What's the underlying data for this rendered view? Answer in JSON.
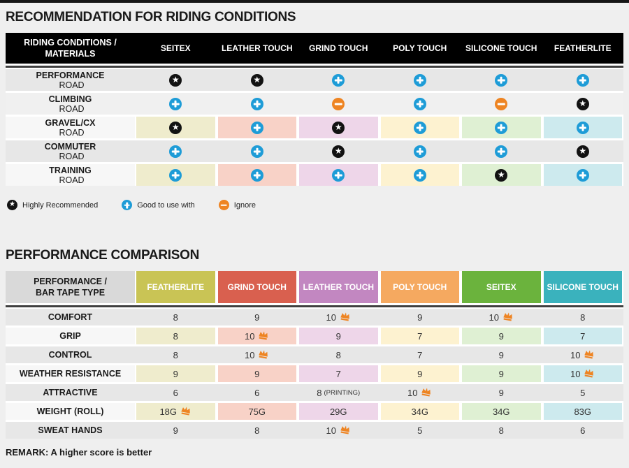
{
  "page_titles": {
    "riding": "RECOMMENDATION FOR RIDING CONDITIONS",
    "performance": "PERFORMANCE COMPARISON",
    "remark": "REMARK: A higher score is better"
  },
  "colors": {
    "blue": "#1e9cd7",
    "orange": "#ee8422",
    "icon_black": "#121212",
    "header_black": "#000000",
    "header_gray": "#d9d9d9",
    "sep_line": "#3f3f3f",
    "page_bg": "#efefef",
    "shades": {
      "dark": "#e7e7e7",
      "mid": "#f0f0f0",
      "light": "#f7f7f7"
    },
    "column_pales": [
      "#efeccd",
      "#f8d2c7",
      "#eed6e9",
      "#fdf2d0",
      "#dff0d3",
      "#cdeaee"
    ]
  },
  "chart_data": [
    {
      "type": "table",
      "title": "RECOMMENDATION FOR RIDING CONDITIONS",
      "row_header_line1": "RIDING CONDITIONS /",
      "row_header_line2": "MATERIALS",
      "columns": [
        "SEITEX",
        "LEATHER TOUCH",
        "GRIND TOUCH",
        "POLY TOUCH",
        "SILICONE TOUCH",
        "FEATHERLITE"
      ],
      "legend": [
        {
          "icon": "star",
          "label": "Highly Recommended"
        },
        {
          "icon": "plus",
          "label": "Good to use with"
        },
        {
          "icon": "minus",
          "label": "Ignore"
        }
      ],
      "rows": [
        {
          "label_bold": "PERFORMANCE",
          "label_rest": "ROAD",
          "shade": "dark",
          "colored": false,
          "icons": [
            "star",
            "star",
            "plus",
            "plus",
            "plus",
            "plus"
          ]
        },
        {
          "label_bold": "CLIMBING",
          "label_rest": "ROAD",
          "shade": "mid",
          "colored": false,
          "icons": [
            "plus",
            "plus",
            "minus",
            "plus",
            "minus",
            "star"
          ]
        },
        {
          "label_bold": "GRAVEL/CX",
          "label_rest": "ROAD",
          "shade": "light",
          "colored": true,
          "icons": [
            "star",
            "plus",
            "star",
            "plus",
            "plus",
            "plus"
          ]
        },
        {
          "label_bold": "COMMUTER",
          "label_rest": "ROAD",
          "shade": "dark",
          "colored": false,
          "icons": [
            "plus",
            "plus",
            "star",
            "plus",
            "plus",
            "star"
          ]
        },
        {
          "label_bold": "TRAINING",
          "label_rest": "ROAD",
          "shade": "light",
          "colored": true,
          "icons": [
            "plus",
            "plus",
            "plus",
            "plus",
            "star",
            "plus"
          ]
        }
      ]
    },
    {
      "type": "table",
      "title": "PERFORMANCE COMPARISON",
      "row_header_line1": "PERFORMANCE /",
      "row_header_line2": "BAR TAPE TYPE",
      "columns": [
        {
          "label": "FEATHERLITE",
          "color": "#c9c455",
          "pale": "#efeccd"
        },
        {
          "label": "GRIND TOUCH",
          "color": "#d9604f",
          "pale": "#f8d2c7"
        },
        {
          "label": "LEATHER TOUCH",
          "color": "#c287c1",
          "pale": "#eed6e9"
        },
        {
          "label": "POLY TOUCH",
          "color": "#f5a960",
          "pale": "#fdf2d0"
        },
        {
          "label": "SEITEX",
          "color": "#6bb33d",
          "pale": "#dff0d3"
        },
        {
          "label": "SILICONE TOUCH",
          "color": "#3ab2bd",
          "pale": "#cdeaee"
        }
      ],
      "note": "REMARK: A higher score is better",
      "rows": [
        {
          "label": "COMFORT",
          "shade": "dark",
          "colored": false,
          "cells": [
            {
              "v": "8"
            },
            {
              "v": "9"
            },
            {
              "v": "10",
              "crown": true
            },
            {
              "v": "9"
            },
            {
              "v": "10",
              "crown": true
            },
            {
              "v": "8"
            }
          ]
        },
        {
          "label": "GRIP",
          "shade": "light",
          "colored": true,
          "cells": [
            {
              "v": "8"
            },
            {
              "v": "10",
              "crown": true
            },
            {
              "v": "9"
            },
            {
              "v": "7"
            },
            {
              "v": "9"
            },
            {
              "v": "7"
            }
          ]
        },
        {
          "label": "CONTROL",
          "shade": "dark",
          "colored": false,
          "cells": [
            {
              "v": "8"
            },
            {
              "v": "10",
              "crown": true
            },
            {
              "v": "8"
            },
            {
              "v": "7"
            },
            {
              "v": "9"
            },
            {
              "v": "10",
              "crown": true
            }
          ]
        },
        {
          "label": "WEATHER RESISTANCE",
          "shade": "light",
          "colored": true,
          "cells": [
            {
              "v": "9"
            },
            {
              "v": "9"
            },
            {
              "v": "7"
            },
            {
              "v": "9"
            },
            {
              "v": "9"
            },
            {
              "v": "10",
              "crown": true
            }
          ]
        },
        {
          "label": "ATTRACTIVE",
          "shade": "dark",
          "colored": false,
          "cells": [
            {
              "v": "6"
            },
            {
              "v": "6"
            },
            {
              "v": "8",
              "note": "(PRINTING)"
            },
            {
              "v": "10",
              "crown": true
            },
            {
              "v": "9"
            },
            {
              "v": "5"
            }
          ]
        },
        {
          "label": "WEIGHT (ROLL)",
          "shade": "light",
          "colored": true,
          "cells": [
            {
              "v": "18G",
              "crown": true
            },
            {
              "v": "75G"
            },
            {
              "v": "29G"
            },
            {
              "v": "34G"
            },
            {
              "v": "34G"
            },
            {
              "v": "83G"
            }
          ]
        },
        {
          "label": "SWEAT HANDS",
          "shade": "dark",
          "colored": false,
          "cells": [
            {
              "v": "9"
            },
            {
              "v": "8"
            },
            {
              "v": "10",
              "crown": true
            },
            {
              "v": "5"
            },
            {
              "v": "8"
            },
            {
              "v": "6"
            }
          ]
        }
      ]
    }
  ]
}
